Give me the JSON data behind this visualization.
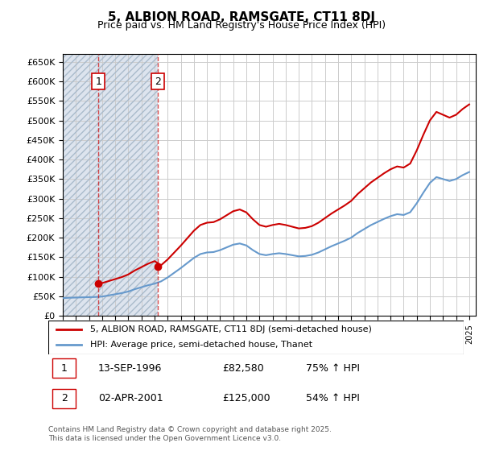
{
  "title": "5, ALBION ROAD, RAMSGATE, CT11 8DJ",
  "subtitle": "Price paid vs. HM Land Registry's House Price Index (HPI)",
  "ylabel": "",
  "ylim": [
    0,
    670000
  ],
  "yticks": [
    0,
    50000,
    100000,
    150000,
    200000,
    250000,
    300000,
    350000,
    400000,
    450000,
    500000,
    550000,
    600000,
    650000
  ],
  "xlim_start": 1994.0,
  "xlim_end": 2025.5,
  "bg_hatch_color": "#d0d8e8",
  "grid_color": "#cccccc",
  "purchase1_date": 1996.71,
  "purchase1_price": 82580,
  "purchase2_date": 2001.25,
  "purchase2_price": 125000,
  "legend_label_red": "5, ALBION ROAD, RAMSGATE, CT11 8DJ (semi-detached house)",
  "legend_label_blue": "HPI: Average price, semi-detached house, Thanet",
  "annotation1_label": "1",
  "annotation1_date": "13-SEP-1996",
  "annotation1_price": "£82,580",
  "annotation1_hpi": "75% ↑ HPI",
  "annotation2_label": "2",
  "annotation2_date": "02-APR-2001",
  "annotation2_price": "£125,000",
  "annotation2_hpi": "54% ↑ HPI",
  "footer": "Contains HM Land Registry data © Crown copyright and database right 2025.\nThis data is licensed under the Open Government Licence v3.0.",
  "red_color": "#cc0000",
  "blue_color": "#6699cc",
  "shaded_start": 1994.0,
  "shaded_end": 2001.25
}
